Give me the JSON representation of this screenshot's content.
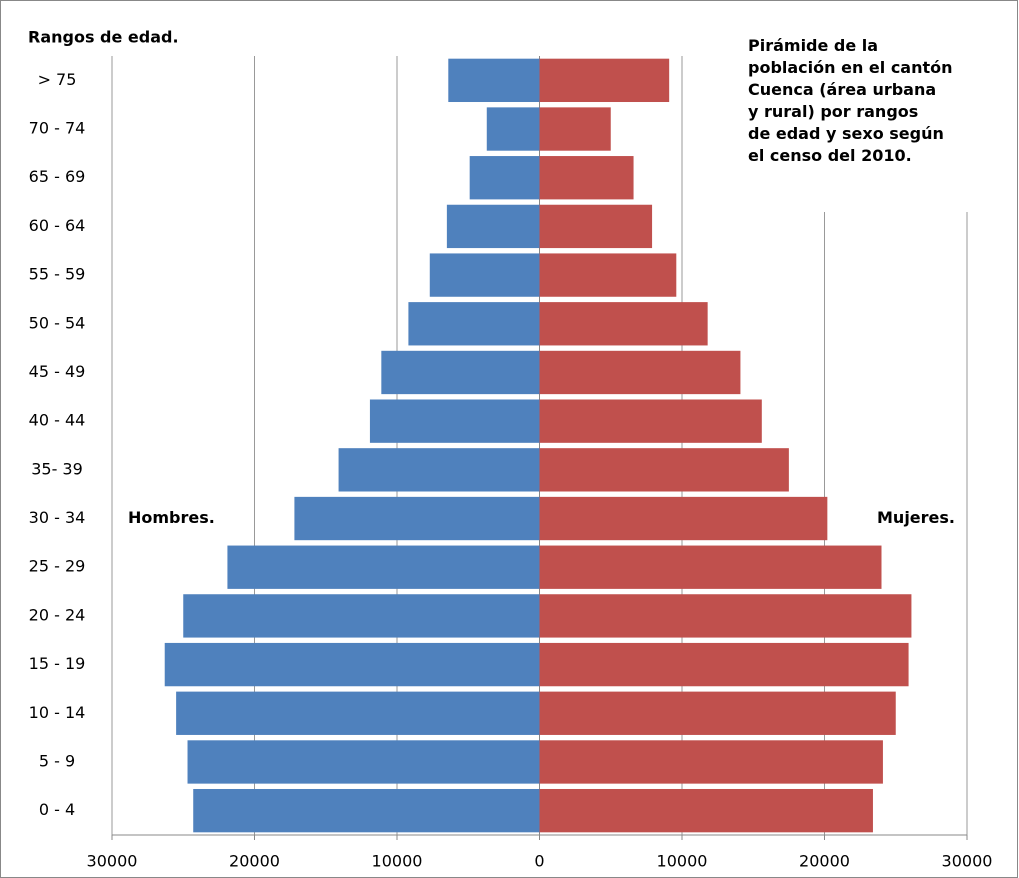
{
  "chart_data": {
    "type": "population-pyramid",
    "title": "Pirámide de la\npoblación en el cantón\nCuenca (área urbana\ny rural) por  rangos\nde edad y sexo según\nel censo del 2010.",
    "y_axis_label": "Rangos de edad.",
    "categories": [
      "0 - 4",
      "5 - 9",
      "10 - 14",
      "15 - 19",
      "20 - 24",
      "25 - 29",
      "30 - 34",
      "35- 39",
      "40 - 44",
      "45 - 49",
      "50 - 54",
      "55 - 59",
      "60 - 64",
      "65 - 69",
      "70 - 74",
      "> 75"
    ],
    "series": [
      {
        "name": "Hombres.",
        "color": "#4f81bd",
        "values": [
          -24300,
          -24700,
          -25500,
          -26300,
          -25000,
          -21900,
          -17200,
          -14100,
          -11900,
          -11100,
          -9200,
          -7700,
          -6500,
          -4900,
          -3700,
          -6400
        ]
      },
      {
        "name": "Mujeres.",
        "color": "#c0504d",
        "values": [
          23400,
          24100,
          25000,
          25900,
          26100,
          24000,
          20200,
          17500,
          15600,
          14100,
          11800,
          9600,
          7900,
          6600,
          5000,
          9100
        ]
      }
    ],
    "xlim": [
      -30000,
      30000
    ],
    "xticks": [
      {
        "value": -30000,
        "label": "30000"
      },
      {
        "value": -20000,
        "label": "20000"
      },
      {
        "value": -10000,
        "label": "10000"
      },
      0,
      10000,
      20000,
      30000
    ],
    "tick_label_color": "#ff0000",
    "grid": true
  }
}
